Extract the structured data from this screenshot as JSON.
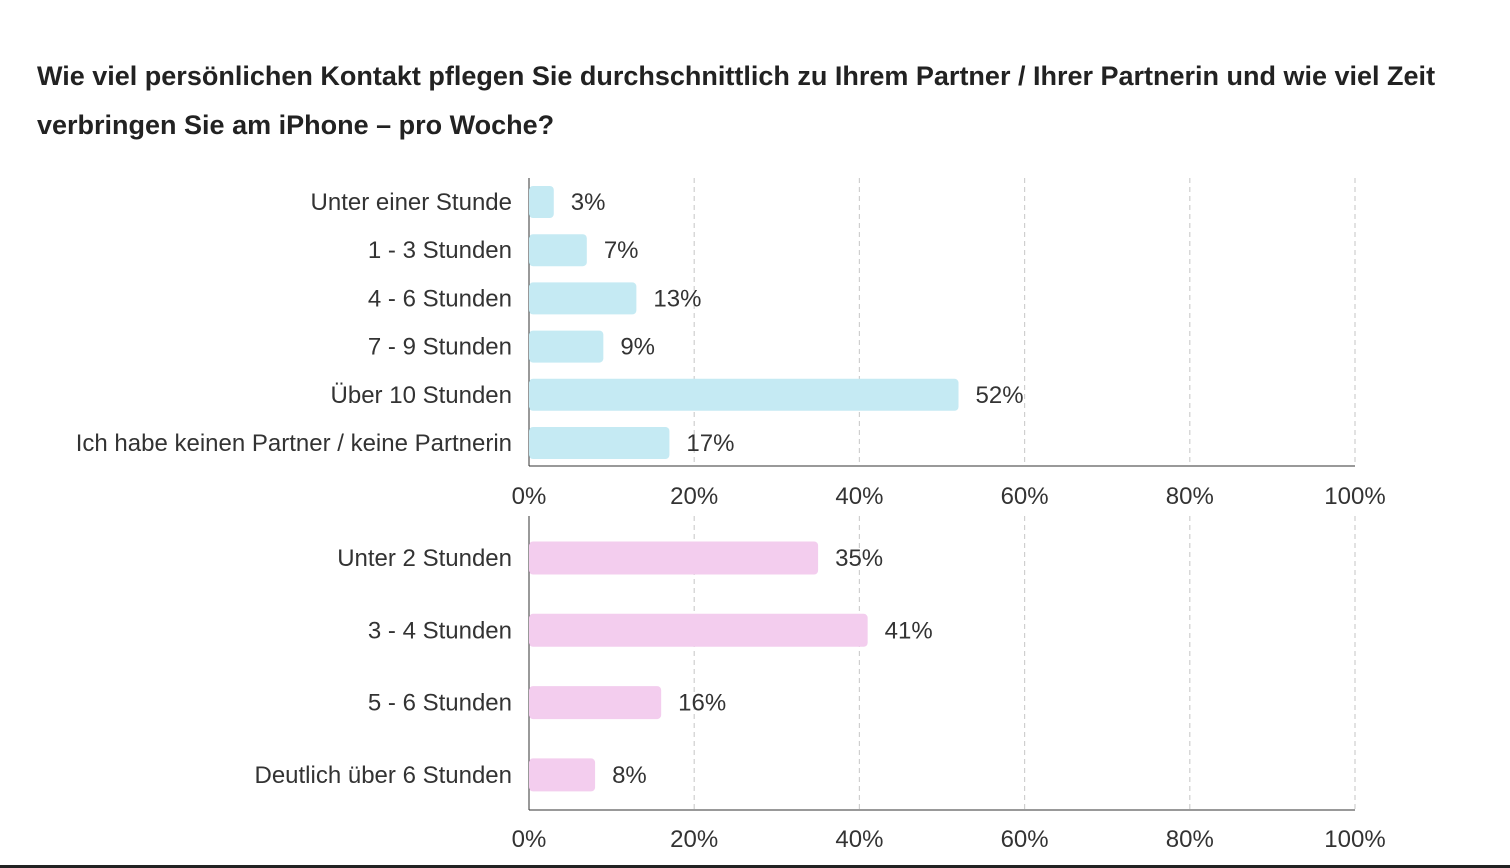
{
  "title": "Wie viel persönlichen Kontakt pflegen Sie durchschnittlich zu Ihrem Partner / Ihrer Partnerin und wie viel Zeit verbringen Sie am iPhone – pro Woche?",
  "chart_data": [
    {
      "type": "bar",
      "orientation": "horizontal",
      "categories": [
        "Unter einer Stunde",
        "1 - 3 Stunden",
        "4 - 6 Stunden",
        "7 - 9 Stunden",
        "Über 10 Stunden",
        "Ich habe keinen Partner / keine Partnerin"
      ],
      "values": [
        3,
        7,
        13,
        9,
        52,
        17
      ],
      "data_labels": [
        "3%",
        "7%",
        "13%",
        "9%",
        "52%",
        "17%"
      ],
      "xlim": [
        0,
        100
      ],
      "x_ticks": [
        "0%",
        "20%",
        "40%",
        "60%",
        "80%",
        "100%"
      ],
      "grid": "vertical dashed",
      "color": "#c5eaf3"
    },
    {
      "type": "bar",
      "orientation": "horizontal",
      "categories": [
        "Unter 2 Stunden",
        "3 - 4 Stunden",
        "5 - 6 Stunden",
        "Deutlich über 6 Stunden"
      ],
      "values": [
        35,
        41,
        16,
        8
      ],
      "data_labels": [
        "35%",
        "41%",
        "16%",
        "8%"
      ],
      "xlim": [
        0,
        100
      ],
      "x_ticks": [
        "0%",
        "20%",
        "40%",
        "60%",
        "80%",
        "100%"
      ],
      "grid": "vertical dashed",
      "color": "#f3cdee"
    }
  ]
}
